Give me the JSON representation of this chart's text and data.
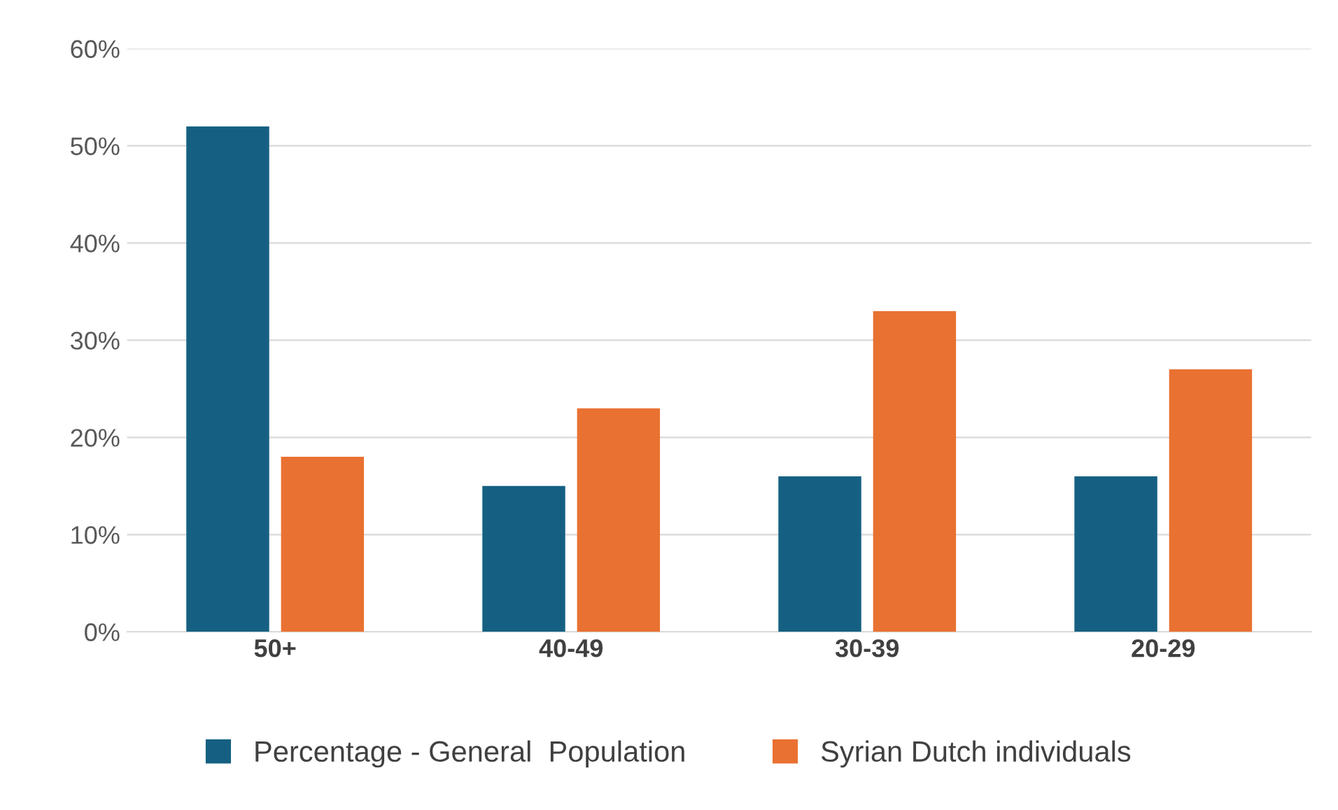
{
  "chart_data": {
    "type": "bar",
    "categories": [
      "50+",
      "40-49",
      "30-39",
      "20-29"
    ],
    "series": [
      {
        "name": "Percentage - General  Population",
        "color": "#156082",
        "values": [
          52,
          15,
          16,
          16
        ]
      },
      {
        "name": "Syrian Dutch individuals",
        "color": "#e97132",
        "values": [
          18,
          23,
          33,
          27
        ]
      }
    ],
    "ylim": [
      0,
      60
    ],
    "yticks": [
      {
        "value": 0,
        "label": "0%"
      },
      {
        "value": 10,
        "label": "10%"
      },
      {
        "value": 20,
        "label": "20%"
      },
      {
        "value": 30,
        "label": "30%"
      },
      {
        "value": 40,
        "label": "40%"
      },
      {
        "value": 50,
        "label": "50%"
      },
      {
        "value": 60,
        "label": "60%"
      }
    ],
    "grid": "y",
    "legend": "bottom"
  }
}
